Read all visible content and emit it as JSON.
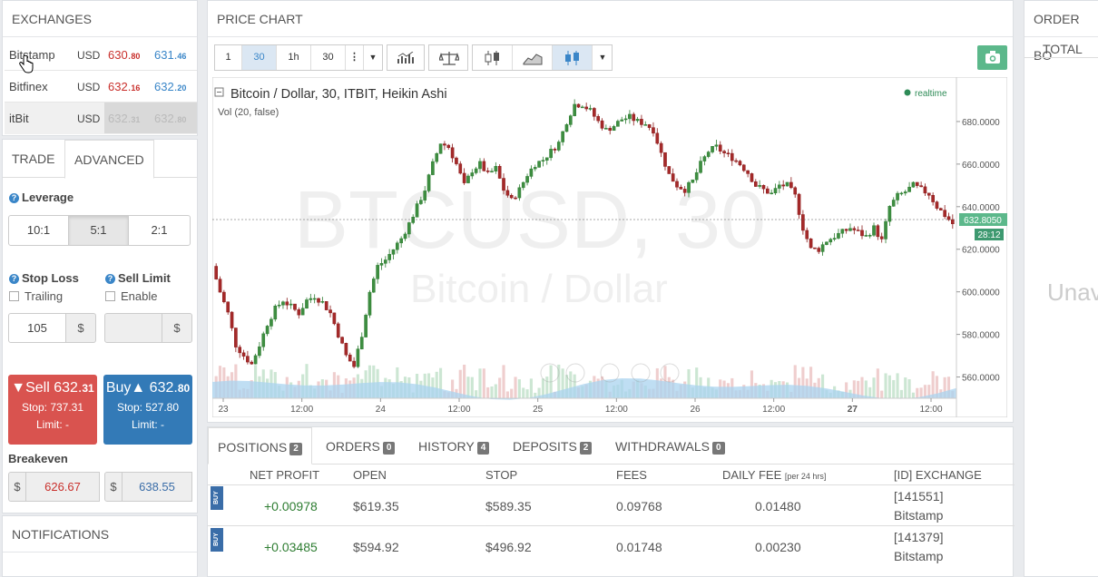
{
  "exchanges": {
    "title": "EXCHANGES",
    "rows": [
      {
        "name": "Bitstamp",
        "currency": "USD",
        "sell_main": "630.",
        "sell_small": "80",
        "buy_main": "631.",
        "buy_small": "46"
      },
      {
        "name": "Bitfinex",
        "currency": "USD",
        "sell_main": "632.",
        "sell_small": "16",
        "buy_main": "632.",
        "buy_small": "20"
      },
      {
        "name": "itBit",
        "currency": "USD",
        "sell_main": "632.",
        "sell_small": "31",
        "buy_main": "632.",
        "buy_small": "80"
      }
    ]
  },
  "trade": {
    "tabs": [
      "TRADE",
      "ADVANCED"
    ],
    "leverage_label": "Leverage",
    "leverage_options": [
      "10:1",
      "5:1",
      "2:1"
    ],
    "stop_loss_label": "Stop Loss",
    "sell_limit_label": "Sell Limit",
    "trailing_label": "Trailing",
    "enable_label": "Enable",
    "stop_loss_value": "105",
    "currency_symbol": "$",
    "sell": {
      "label": "▼Sell",
      "price_main": "632.",
      "price_small": "31",
      "stop": "Stop: 737.31",
      "limit": "Limit: -"
    },
    "buy": {
      "label": "Buy▲",
      "price_main": "632.",
      "price_small": "80",
      "stop": "Stop: 527.80",
      "limit": "Limit: -"
    },
    "breakeven_label": "Breakeven",
    "breakeven_sell": "626.67",
    "breakeven_buy": "638.55"
  },
  "notifications": {
    "title": "NOTIFICATIONS"
  },
  "chart": {
    "title": "PRICE CHART",
    "toolbar": {
      "r1": "1",
      "r30": "30",
      "r1h": "1h",
      "r30b": "30"
    },
    "series_title": "Bitcoin / Dollar, 30, ITBIT, Heikin Ashi",
    "volume_label": "Vol (20, false)",
    "realtime": "realtime",
    "watermark_symbol": "BTCUSD, 30",
    "watermark_name": "Bitcoin / Dollar",
    "last_price": "632.8050",
    "countdown": "28:12",
    "colors": {
      "up": "#2e7d32",
      "down": "#8b1a1a",
      "accent": "#5cb88b",
      "blue": "#3a86c8",
      "sell_btn": "#d9534f",
      "buy_btn": "#337ab7"
    }
  },
  "chart_data": {
    "type": "candlestick",
    "title": "Bitcoin / Dollar, 30, ITBIT, Heikin Ashi",
    "ylim": [
      550,
      700
    ],
    "y_ticks": [
      "680.0000",
      "660.0000",
      "640.0000",
      "620.0000",
      "600.0000",
      "580.0000",
      "560.0000"
    ],
    "x_ticks": [
      "23",
      "12:00",
      "24",
      "12:00",
      "25",
      "12:00",
      "26",
      "12:00",
      "27",
      "12:00"
    ],
    "close_path": [
      612,
      600,
      590,
      575,
      570,
      566,
      575,
      585,
      592,
      596,
      593,
      590,
      596,
      598,
      595,
      590,
      580,
      570,
      565,
      580,
      600,
      612,
      615,
      620,
      625,
      632,
      640,
      648,
      660,
      670,
      668,
      660,
      650,
      657,
      660,
      655,
      658,
      648,
      643,
      648,
      655,
      660,
      662,
      666,
      670,
      680,
      688,
      688,
      685,
      680,
      676,
      678,
      681,
      682,
      680,
      679,
      676,
      665,
      655,
      650,
      648,
      652,
      660,
      666,
      668,
      665,
      663,
      660,
      656,
      650,
      648,
      646,
      650,
      650,
      645,
      630,
      620,
      620,
      624,
      626,
      628,
      630,
      628,
      626,
      630,
      624,
      640,
      645,
      647,
      650,
      648,
      646,
      640,
      636,
      632
    ]
  },
  "bottom": {
    "tabs": [
      {
        "label": "POSITIONS",
        "count": "2"
      },
      {
        "label": "ORDERS",
        "count": "0"
      },
      {
        "label": "HISTORY",
        "count": "4"
      },
      {
        "label": "DEPOSITS",
        "count": "2"
      },
      {
        "label": "WITHDRAWALS",
        "count": "0"
      }
    ],
    "headers": {
      "net_profit": "NET PROFIT",
      "open": "OPEN",
      "stop": "STOP",
      "fees": "FEES",
      "daily_fee": "DAILY FEE",
      "daily_fee_note": "[per 24 hrs]",
      "exchange": "[ID] EXCHANGE"
    },
    "rows": [
      {
        "side": "BUY",
        "net_profit": "+0.00978",
        "open": "$619.35",
        "stop": "$589.35",
        "fees": "0.09768",
        "daily_fee": "0.01480",
        "id": "[141551]",
        "exchange": "Bitstamp"
      },
      {
        "side": "BUY",
        "net_profit": "+0.03485",
        "open": "$594.92",
        "stop": "$496.92",
        "fees": "0.01748",
        "daily_fee": "0.00230",
        "id": "[141379]",
        "exchange": "Bitstamp"
      }
    ]
  },
  "orderbook": {
    "title": "ORDER BO",
    "total": "TOTAL",
    "status": "Unav"
  }
}
